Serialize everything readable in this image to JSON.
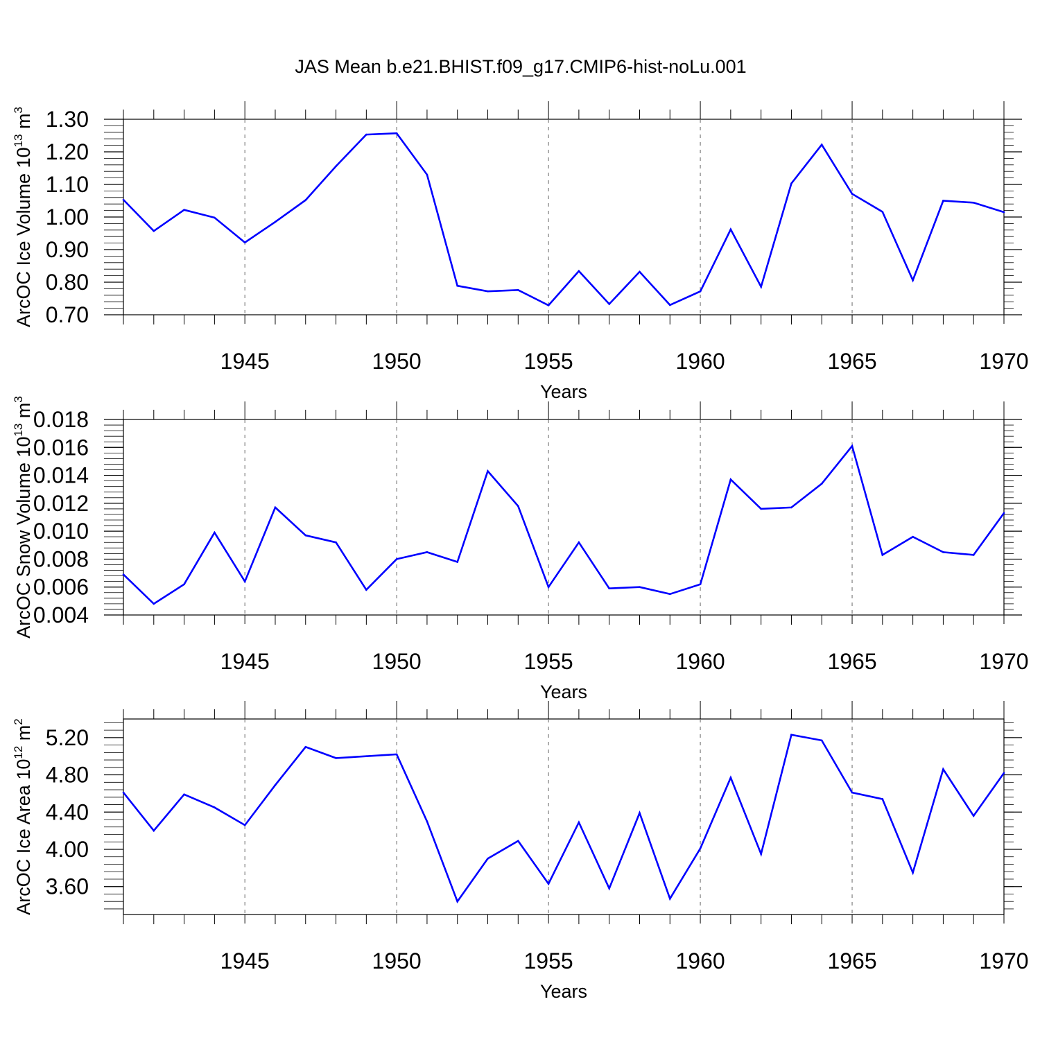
{
  "title": "JAS Mean b.e21.BHIST.f09_g17.CMIP6-hist-noLu.001",
  "chart_data": [
    {
      "type": "line",
      "name": "ice-volume",
      "ylabel": {
        "main": "ArcOC Ice Volume 10",
        "exp": "13",
        "unit": " m",
        "unit_exp": "3"
      },
      "xlabel": "Years",
      "xlim": [
        1941,
        1970
      ],
      "x_ticks": [
        "1945",
        "1950",
        "1955",
        "1960",
        "1965",
        "1970"
      ],
      "ylim": [
        0.7,
        1.3
      ],
      "y_ticks": [
        "0.70",
        "0.80",
        "0.90",
        "1.00",
        "1.10",
        "1.20",
        "1.30"
      ],
      "line_color": "#0000ff",
      "series": [
        {
          "name": "ArcOC Ice Volume",
          "x": [
            1941,
            1942,
            1943,
            1944,
            1945,
            1946,
            1947,
            1948,
            1949,
            1950,
            1951,
            1952,
            1953,
            1954,
            1955,
            1956,
            1957,
            1958,
            1959,
            1960,
            1961,
            1962,
            1963,
            1964,
            1965,
            1966,
            1967,
            1968,
            1969,
            1970
          ],
          "values": [
            1.053,
            0.957,
            1.022,
            0.998,
            0.922,
            0.985,
            1.052,
            1.156,
            1.253,
            1.257,
            1.13,
            0.789,
            0.772,
            0.776,
            0.729,
            0.834,
            0.733,
            0.832,
            0.73,
            0.772,
            0.962,
            0.786,
            1.103,
            1.222,
            1.071,
            1.016,
            0.806,
            1.05,
            1.044,
            1.015
          ]
        }
      ]
    },
    {
      "type": "line",
      "name": "snow-volume",
      "ylabel": {
        "main": "ArcOC Snow Volume 10",
        "exp": "13",
        "unit": " m",
        "unit_exp": "3"
      },
      "xlabel": "Years",
      "xlim": [
        1941,
        1970
      ],
      "x_ticks": [
        "1945",
        "1950",
        "1955",
        "1960",
        "1965",
        "1970"
      ],
      "ylim": [
        0.004,
        0.018
      ],
      "y_ticks": [
        "0.004",
        "0.006",
        "0.008",
        "0.010",
        "0.012",
        "0.014",
        "0.016",
        "0.018"
      ],
      "line_color": "#0000ff",
      "series": [
        {
          "name": "ArcOC Snow Volume",
          "x": [
            1941,
            1942,
            1943,
            1944,
            1945,
            1946,
            1947,
            1948,
            1949,
            1950,
            1951,
            1952,
            1953,
            1954,
            1955,
            1956,
            1957,
            1958,
            1959,
            1960,
            1961,
            1962,
            1963,
            1964,
            1965,
            1966,
            1967,
            1968,
            1969,
            1970
          ],
          "values": [
            0.0069,
            0.0048,
            0.0062,
            0.0099,
            0.0064,
            0.0117,
            0.0097,
            0.0092,
            0.0058,
            0.008,
            0.0085,
            0.0078,
            0.0143,
            0.0118,
            0.006,
            0.0092,
            0.0059,
            0.006,
            0.0055,
            0.0062,
            0.0137,
            0.0116,
            0.0117,
            0.0134,
            0.0161,
            0.0083,
            0.0096,
            0.0085,
            0.0083,
            0.0113
          ]
        }
      ]
    },
    {
      "type": "line",
      "name": "ice-area",
      "ylabel": {
        "main": "ArcOC Ice Area 10",
        "exp": "12",
        "unit": " m",
        "unit_exp": "2"
      },
      "xlabel": "Years",
      "xlim": [
        1941,
        1970
      ],
      "x_ticks": [
        "1945",
        "1950",
        "1955",
        "1960",
        "1965",
        "1970"
      ],
      "ylim": [
        3.3,
        5.4
      ],
      "y_ticks": [
        "3.60",
        "4.00",
        "4.40",
        "4.80",
        "5.20"
      ],
      "line_color": "#0000ff",
      "series": [
        {
          "name": "ArcOC Ice Area",
          "x": [
            1941,
            1942,
            1943,
            1944,
            1945,
            1946,
            1947,
            1948,
            1949,
            1950,
            1951,
            1952,
            1953,
            1954,
            1955,
            1956,
            1957,
            1958,
            1959,
            1960,
            1961,
            1962,
            1963,
            1964,
            1965,
            1966,
            1967,
            1968,
            1969,
            1970
          ],
          "values": [
            4.61,
            4.2,
            4.59,
            4.45,
            4.26,
            4.69,
            5.1,
            4.98,
            5.0,
            5.02,
            4.3,
            3.44,
            3.9,
            4.09,
            3.63,
            4.29,
            3.58,
            4.39,
            3.47,
            4.01,
            4.77,
            3.95,
            5.23,
            5.17,
            4.61,
            4.54,
            3.75,
            4.86,
            4.36,
            4.82
          ]
        }
      ]
    }
  ]
}
